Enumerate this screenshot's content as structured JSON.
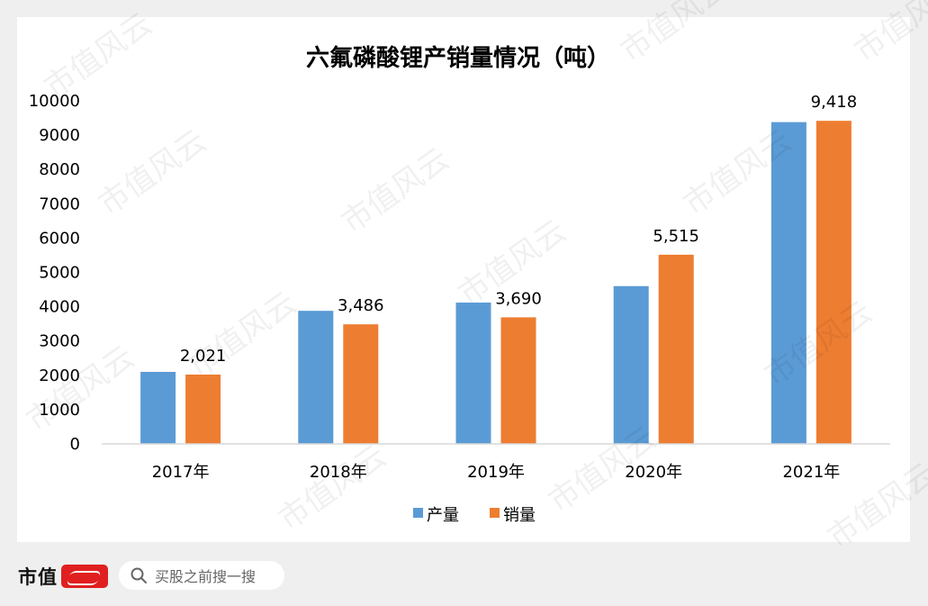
{
  "chart_data": {
    "type": "bar",
    "title": "六氟磷酸锂产销量情况（吨）",
    "categories": [
      "2017年",
      "2018年",
      "2019年",
      "2020年",
      "2021年"
    ],
    "series": [
      {
        "name": "产量",
        "values": [
          2100,
          3880,
          4120,
          4600,
          9380
        ],
        "color": "#5b9bd5"
      },
      {
        "name": "销量",
        "values": [
          2021,
          3486,
          3690,
          5515,
          9418
        ],
        "color": "#ed7d31"
      }
    ],
    "data_labels": [
      "2,021",
      "3,486",
      "3,690",
      "5,515",
      "9,418"
    ],
    "ylim": [
      0,
      10000
    ],
    "yticks": [
      "0",
      "1000",
      "2000",
      "3000",
      "4000",
      "5000",
      "6000",
      "7000",
      "8000",
      "9000",
      "10000"
    ],
    "grid": false,
    "legend": "bottom"
  },
  "watermark": "市值风云",
  "footer": {
    "brand": "市值",
    "brand_logo_icon": "fengyun-logo-icon",
    "search_icon": "search-icon",
    "search_placeholder": "买股之前搜一搜"
  }
}
